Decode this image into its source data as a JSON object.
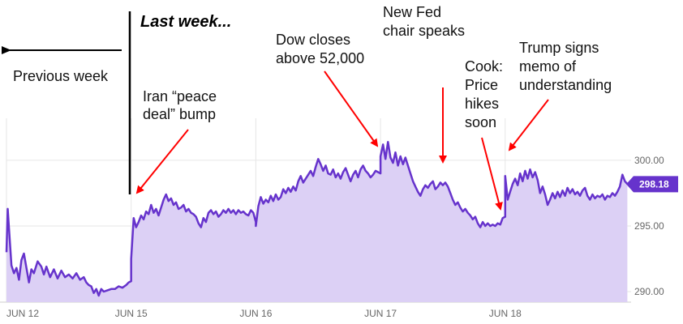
{
  "chart_data": {
    "type": "area",
    "title": "",
    "xlabel": "",
    "ylabel": "",
    "ylim": [
      289.2,
      303.2
    ],
    "yticks": [
      290.0,
      295.0,
      300.0
    ],
    "ytick_labels": [
      "290.00",
      "295.00",
      "300.00"
    ],
    "xticks": [
      {
        "x": 0,
        "label": "JUN 12"
      },
      {
        "x": 1,
        "label": "JUN 15"
      },
      {
        "x": 2,
        "label": "JUN 16"
      },
      {
        "x": 3,
        "label": "JUN 17"
      },
      {
        "x": 4,
        "label": "JUN 18"
      }
    ],
    "xlim": [
      0,
      4.99
    ],
    "current_value": 298.18,
    "current_value_label": "298.18",
    "series": [
      {
        "points": [
          [
            0.0,
            293.0
          ],
          [
            0.01,
            296.3
          ],
          [
            0.02,
            294.8
          ],
          [
            0.04,
            292.0
          ],
          [
            0.06,
            291.4
          ],
          [
            0.08,
            291.8
          ],
          [
            0.1,
            290.9
          ],
          [
            0.12,
            292.4
          ],
          [
            0.14,
            292.9
          ],
          [
            0.16,
            291.8
          ],
          [
            0.18,
            290.7
          ],
          [
            0.2,
            291.7
          ],
          [
            0.22,
            291.4
          ],
          [
            0.25,
            292.3
          ],
          [
            0.28,
            291.9
          ],
          [
            0.3,
            291.3
          ],
          [
            0.32,
            291.9
          ],
          [
            0.35,
            291.1
          ],
          [
            0.38,
            291.7
          ],
          [
            0.41,
            291.0
          ],
          [
            0.44,
            291.6
          ],
          [
            0.47,
            291.1
          ],
          [
            0.5,
            291.3
          ],
          [
            0.53,
            291.0
          ],
          [
            0.56,
            291.4
          ],
          [
            0.59,
            290.9
          ],
          [
            0.62,
            291.1
          ],
          [
            0.64,
            290.7
          ],
          [
            0.66,
            290.5
          ],
          [
            0.68,
            290.4
          ],
          [
            0.7,
            289.9
          ],
          [
            0.72,
            290.2
          ],
          [
            0.74,
            289.7
          ],
          [
            0.76,
            290.2
          ],
          [
            0.78,
            290.0
          ],
          [
            0.81,
            290.1
          ],
          [
            0.84,
            290.2
          ],
          [
            0.87,
            290.2
          ],
          [
            0.9,
            290.4
          ],
          [
            0.93,
            290.3
          ],
          [
            0.96,
            290.5
          ],
          [
            0.98,
            290.7
          ],
          [
            1.0,
            290.8
          ],
          [
            1.0,
            292.5
          ],
          [
            1.02,
            295.6
          ],
          [
            1.04,
            294.9
          ],
          [
            1.06,
            295.3
          ],
          [
            1.08,
            295.8
          ],
          [
            1.1,
            295.5
          ],
          [
            1.12,
            296.1
          ],
          [
            1.14,
            295.9
          ],
          [
            1.16,
            296.6
          ],
          [
            1.18,
            296.0
          ],
          [
            1.2,
            296.3
          ],
          [
            1.22,
            295.8
          ],
          [
            1.24,
            296.4
          ],
          [
            1.26,
            297.0
          ],
          [
            1.28,
            297.4
          ],
          [
            1.3,
            296.9
          ],
          [
            1.32,
            297.1
          ],
          [
            1.34,
            296.6
          ],
          [
            1.36,
            296.8
          ],
          [
            1.38,
            296.3
          ],
          [
            1.4,
            296.4
          ],
          [
            1.42,
            296.6
          ],
          [
            1.44,
            296.1
          ],
          [
            1.46,
            296.3
          ],
          [
            1.48,
            296.0
          ],
          [
            1.5,
            295.9
          ],
          [
            1.52,
            295.7
          ],
          [
            1.54,
            295.2
          ],
          [
            1.56,
            294.9
          ],
          [
            1.58,
            295.6
          ],
          [
            1.6,
            295.3
          ],
          [
            1.62,
            296.0
          ],
          [
            1.64,
            296.2
          ],
          [
            1.66,
            295.9
          ],
          [
            1.68,
            296.1
          ],
          [
            1.7,
            295.7
          ],
          [
            1.72,
            295.9
          ],
          [
            1.74,
            296.2
          ],
          [
            1.76,
            296.0
          ],
          [
            1.78,
            296.3
          ],
          [
            1.8,
            296.0
          ],
          [
            1.82,
            296.2
          ],
          [
            1.84,
            295.9
          ],
          [
            1.86,
            296.2
          ],
          [
            1.88,
            296.0
          ],
          [
            1.9,
            296.1
          ],
          [
            1.92,
            295.9
          ],
          [
            1.94,
            295.8
          ],
          [
            1.96,
            296.2
          ],
          [
            1.98,
            296.0
          ],
          [
            2.0,
            295.3
          ],
          [
            2.0,
            295.0
          ],
          [
            2.02,
            296.5
          ],
          [
            2.04,
            297.2
          ],
          [
            2.06,
            296.7
          ],
          [
            2.08,
            297.0
          ],
          [
            2.1,
            296.8
          ],
          [
            2.12,
            297.3
          ],
          [
            2.14,
            296.9
          ],
          [
            2.16,
            297.4
          ],
          [
            2.18,
            297.0
          ],
          [
            2.2,
            297.2
          ],
          [
            2.22,
            297.8
          ],
          [
            2.24,
            297.5
          ],
          [
            2.26,
            297.9
          ],
          [
            2.28,
            297.6
          ],
          [
            2.3,
            298.0
          ],
          [
            2.32,
            297.7
          ],
          [
            2.34,
            298.4
          ],
          [
            2.36,
            298.8
          ],
          [
            2.38,
            298.3
          ],
          [
            2.4,
            298.6
          ],
          [
            2.42,
            298.9
          ],
          [
            2.44,
            299.2
          ],
          [
            2.46,
            298.8
          ],
          [
            2.48,
            299.5
          ],
          [
            2.5,
            300.1
          ],
          [
            2.52,
            299.7
          ],
          [
            2.54,
            299.2
          ],
          [
            2.56,
            299.6
          ],
          [
            2.58,
            299.0
          ],
          [
            2.6,
            298.9
          ],
          [
            2.62,
            299.3
          ],
          [
            2.64,
            298.7
          ],
          [
            2.66,
            299.0
          ],
          [
            2.68,
            298.6
          ],
          [
            2.7,
            299.1
          ],
          [
            2.72,
            299.4
          ],
          [
            2.74,
            298.9
          ],
          [
            2.76,
            298.4
          ],
          [
            2.78,
            298.9
          ],
          [
            2.8,
            299.2
          ],
          [
            2.82,
            298.7
          ],
          [
            2.84,
            299.3
          ],
          [
            2.86,
            299.6
          ],
          [
            2.88,
            299.2
          ],
          [
            2.9,
            299.0
          ],
          [
            2.92,
            298.7
          ],
          [
            2.94,
            298.9
          ],
          [
            2.96,
            299.2
          ],
          [
            2.98,
            299.1
          ],
          [
            3.0,
            299.0
          ],
          [
            3.0,
            300.3
          ],
          [
            3.02,
            301.2
          ],
          [
            3.04,
            300.1
          ],
          [
            3.06,
            301.4
          ],
          [
            3.08,
            300.2
          ],
          [
            3.1,
            299.8
          ],
          [
            3.12,
            300.6
          ],
          [
            3.14,
            299.6
          ],
          [
            3.16,
            300.3
          ],
          [
            3.18,
            299.7
          ],
          [
            3.2,
            300.2
          ],
          [
            3.22,
            299.6
          ],
          [
            3.24,
            299.0
          ],
          [
            3.26,
            298.4
          ],
          [
            3.28,
            298.0
          ],
          [
            3.3,
            297.6
          ],
          [
            3.32,
            297.3
          ],
          [
            3.34,
            297.8
          ],
          [
            3.36,
            298.1
          ],
          [
            3.38,
            297.9
          ],
          [
            3.4,
            298.2
          ],
          [
            3.42,
            298.4
          ],
          [
            3.44,
            297.8
          ],
          [
            3.46,
            298.0
          ],
          [
            3.48,
            298.3
          ],
          [
            3.5,
            298.1
          ],
          [
            3.52,
            298.3
          ],
          [
            3.54,
            298.0
          ],
          [
            3.56,
            297.5
          ],
          [
            3.58,
            297.0
          ],
          [
            3.6,
            296.6
          ],
          [
            3.62,
            296.8
          ],
          [
            3.64,
            296.4
          ],
          [
            3.66,
            296.1
          ],
          [
            3.68,
            296.3
          ],
          [
            3.7,
            296.0
          ],
          [
            3.72,
            295.8
          ],
          [
            3.74,
            295.5
          ],
          [
            3.76,
            295.7
          ],
          [
            3.78,
            295.2
          ],
          [
            3.8,
            294.9
          ],
          [
            3.82,
            295.3
          ],
          [
            3.84,
            295.0
          ],
          [
            3.86,
            295.2
          ],
          [
            3.88,
            295.0
          ],
          [
            3.9,
            295.1
          ],
          [
            3.92,
            295.0
          ],
          [
            3.94,
            295.2
          ],
          [
            3.96,
            295.1
          ],
          [
            3.98,
            295.6
          ],
          [
            4.0,
            295.7
          ],
          [
            4.0,
            298.8
          ],
          [
            4.02,
            297.0
          ],
          [
            4.04,
            297.6
          ],
          [
            4.06,
            298.2
          ],
          [
            4.08,
            298.6
          ],
          [
            4.1,
            298.1
          ],
          [
            4.12,
            299.0
          ],
          [
            4.14,
            298.4
          ],
          [
            4.16,
            299.2
          ],
          [
            4.18,
            298.6
          ],
          [
            4.2,
            299.3
          ],
          [
            4.22,
            298.7
          ],
          [
            4.24,
            299.1
          ],
          [
            4.26,
            298.5
          ],
          [
            4.28,
            297.5
          ],
          [
            4.3,
            298.0
          ],
          [
            4.32,
            297.4
          ],
          [
            4.34,
            296.6
          ],
          [
            4.36,
            297.0
          ],
          [
            4.38,
            297.5
          ],
          [
            4.4,
            297.1
          ],
          [
            4.42,
            297.6
          ],
          [
            4.44,
            297.2
          ],
          [
            4.46,
            297.7
          ],
          [
            4.48,
            297.3
          ],
          [
            4.5,
            297.9
          ],
          [
            4.52,
            297.5
          ],
          [
            4.54,
            297.8
          ],
          [
            4.56,
            297.4
          ],
          [
            4.58,
            297.6
          ],
          [
            4.6,
            297.3
          ],
          [
            4.62,
            297.7
          ],
          [
            4.64,
            297.9
          ],
          [
            4.66,
            297.3
          ],
          [
            4.68,
            297.0
          ],
          [
            4.7,
            297.4
          ],
          [
            4.72,
            297.1
          ],
          [
            4.74,
            297.3
          ],
          [
            4.76,
            297.2
          ],
          [
            4.78,
            297.4
          ],
          [
            4.8,
            297.0
          ],
          [
            4.82,
            297.3
          ],
          [
            4.84,
            297.2
          ],
          [
            4.86,
            297.5
          ],
          [
            4.88,
            297.3
          ],
          [
            4.9,
            297.6
          ],
          [
            4.92,
            298.0
          ],
          [
            4.94,
            298.9
          ],
          [
            4.96,
            298.4
          ],
          [
            4.98,
            298.2
          ]
        ]
      }
    ],
    "annotations": {
      "last_week": "Last week...",
      "previous_week": "Previous week",
      "iran_line1": "Iran “peace",
      "iran_line2": "deal” bump",
      "dow_line1": "Dow closes",
      "dow_line2": "above 52,000",
      "fed_line1": "New Fed",
      "fed_line2": "chair speaks",
      "cook_line1": "Cook:",
      "cook_line2": "Price",
      "cook_line3": "hikes",
      "cook_line4": "soon",
      "trump_line1": "Trump signs",
      "trump_line2": "memo of",
      "trump_line3": "understanding"
    },
    "colors": {
      "line": "#6633cc",
      "fill": "#dcd0f5",
      "arrow": "#ff0000",
      "price_tag": "#6633cc",
      "grid": "#e6e6e6",
      "divider": "#000000"
    },
    "grid": true
  }
}
